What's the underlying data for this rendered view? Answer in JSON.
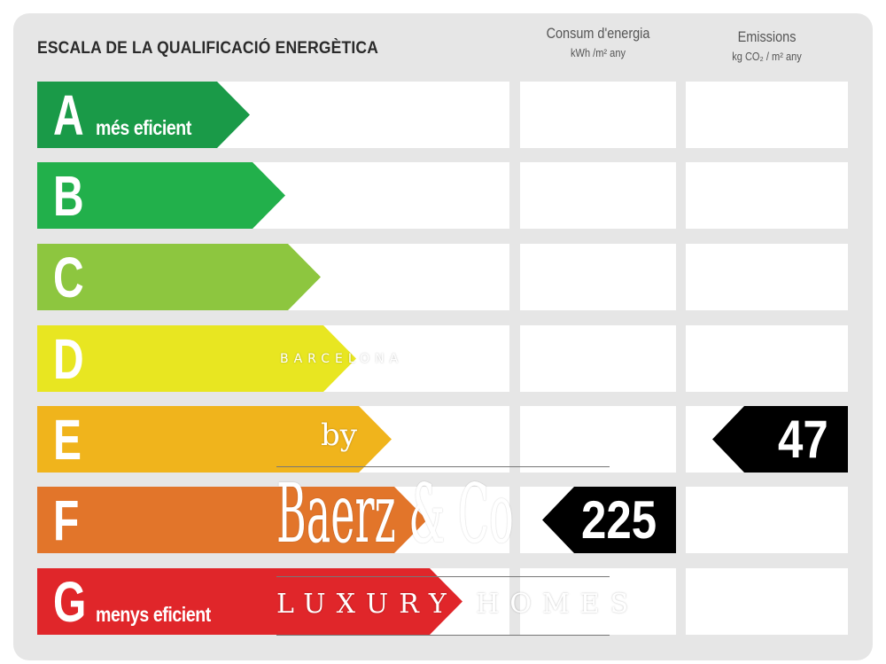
{
  "title": "ESCALA DE LA QUALIFICACIÓ ENERGÈTICA",
  "columns": {
    "consumption": {
      "title": "Consum d'energia",
      "unit": "kWh /m² any"
    },
    "emissions": {
      "title": "Emissions",
      "unit": "kg CO₂ / m² any"
    }
  },
  "ratings": [
    {
      "letter": "A",
      "note": "més eficient",
      "color": "#1a9a48"
    },
    {
      "letter": "B",
      "note": "",
      "color": "#22b04b"
    },
    {
      "letter": "C",
      "note": "",
      "color": "#8dc63f"
    },
    {
      "letter": "D",
      "note": "",
      "color": "#e8e621"
    },
    {
      "letter": "E",
      "note": "",
      "color": "#f0b41c"
    },
    {
      "letter": "F",
      "note": "",
      "color": "#e2752a"
    },
    {
      "letter": "G",
      "note": "menys eficient",
      "color": "#e0262a"
    }
  ],
  "consumption_value": {
    "value": "225",
    "rating": "F"
  },
  "emissions_value": {
    "value": "47",
    "rating": "E"
  },
  "watermark": {
    "top": "BARCELONA",
    "by": "by",
    "brand": "Baerz & Co",
    "tagline": "LUXURY HOMES"
  }
}
